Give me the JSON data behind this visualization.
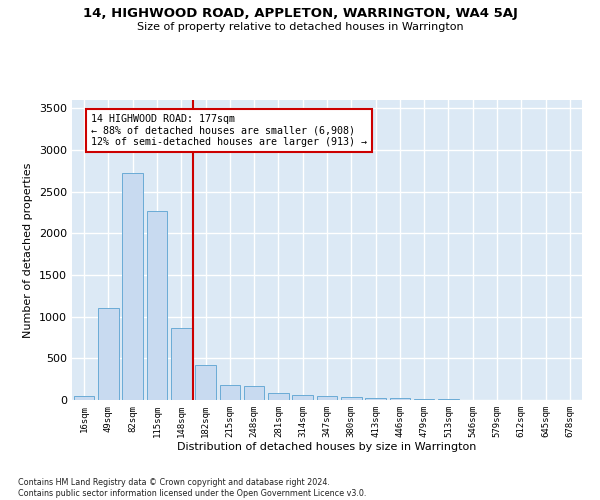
{
  "title": "14, HIGHWOOD ROAD, APPLETON, WARRINGTON, WA4 5AJ",
  "subtitle": "Size of property relative to detached houses in Warrington",
  "xlabel": "Distribution of detached houses by size in Warrington",
  "ylabel": "Number of detached properties",
  "bar_color": "#c8daf0",
  "bar_edge_color": "#6aabd6",
  "background_color": "#dce9f5",
  "grid_color": "#ffffff",
  "annotation_line_color": "#cc0000",
  "annotation_box_color": "#cc0000",
  "annotation_text": "14 HIGHWOOD ROAD: 177sqm\n← 88% of detached houses are smaller (6,908)\n12% of semi-detached houses are larger (913) →",
  "property_bin_index": 5,
  "categories": [
    "16sqm",
    "49sqm",
    "82sqm",
    "115sqm",
    "148sqm",
    "182sqm",
    "215sqm",
    "248sqm",
    "281sqm",
    "314sqm",
    "347sqm",
    "380sqm",
    "413sqm",
    "446sqm",
    "479sqm",
    "513sqm",
    "546sqm",
    "579sqm",
    "612sqm",
    "645sqm",
    "678sqm"
  ],
  "values": [
    50,
    1100,
    2730,
    2270,
    870,
    415,
    175,
    165,
    90,
    60,
    50,
    35,
    20,
    20,
    15,
    10,
    5,
    5,
    3,
    2,
    2
  ],
  "ylim": [
    0,
    3600
  ],
  "yticks": [
    0,
    500,
    1000,
    1500,
    2000,
    2500,
    3000,
    3500
  ],
  "fig_bg": "#ffffff",
  "footnote": "Contains HM Land Registry data © Crown copyright and database right 2024.\nContains public sector information licensed under the Open Government Licence v3.0."
}
